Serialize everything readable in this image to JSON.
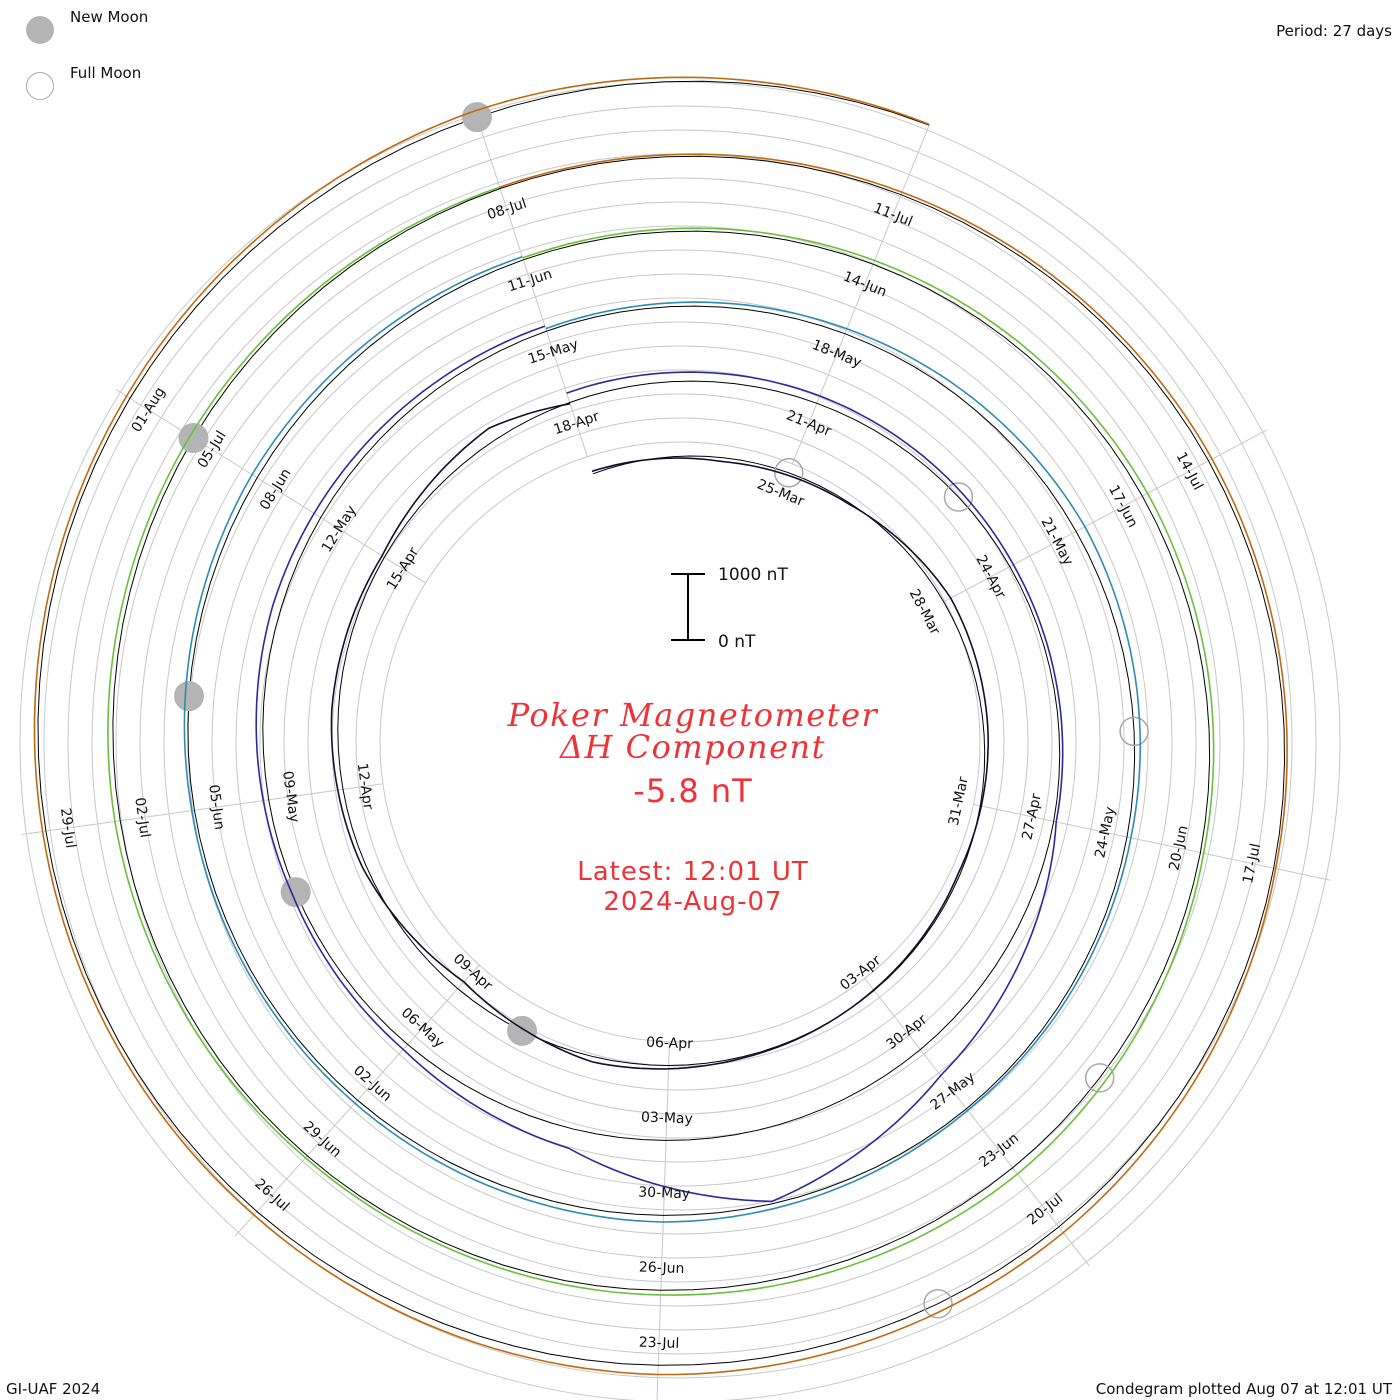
{
  "header": {
    "period_label": "Period: 27 days"
  },
  "legend": {
    "new_moon_label": "New Moon",
    "full_moon_label": "Full Moon"
  },
  "title": {
    "line1": "Poker Magnetometer",
    "line2": "ΔH Component",
    "current_value": "-5.8 nT",
    "latest_line1": "Latest: 12:01 UT",
    "latest_line2": "2024-Aug-07"
  },
  "footer": {
    "left": "GI-UAF 2024",
    "right": "Condegram plotted Aug 07 at 12:01 UT"
  },
  "colors": {
    "title": "#ee3338",
    "grid": "#c0c0c0",
    "baseline": "#000000",
    "moon_fill": "#b4b4b4"
  },
  "chart_data": {
    "type": "line",
    "subtype": "spiral condegram",
    "period_days": 27,
    "start_date": "2024-03-22",
    "end_date": "2024-08-07",
    "scale_bar": {
      "low_label": "0 nT",
      "high_label": "1000 nT",
      "low": 0,
      "high": 1000
    },
    "date_labels": [
      {
        "text": "25-Mar",
        "date": "2024-03-25"
      },
      {
        "text": "28-Mar",
        "date": "2024-03-28"
      },
      {
        "text": "31-Mar",
        "date": "2024-03-31"
      },
      {
        "text": "03-Apr",
        "date": "2024-04-03"
      },
      {
        "text": "06-Apr",
        "date": "2024-04-06"
      },
      {
        "text": "09-Apr",
        "date": "2024-04-09"
      },
      {
        "text": "12-Apr",
        "date": "2024-04-12"
      },
      {
        "text": "15-Apr",
        "date": "2024-04-15"
      },
      {
        "text": "18-Apr",
        "date": "2024-04-18"
      },
      {
        "text": "21-Apr",
        "date": "2024-04-21"
      },
      {
        "text": "24-Apr",
        "date": "2024-04-24"
      },
      {
        "text": "27-Apr",
        "date": "2024-04-27"
      },
      {
        "text": "30-Apr",
        "date": "2024-04-30"
      },
      {
        "text": "03-May",
        "date": "2024-05-03"
      },
      {
        "text": "06-May",
        "date": "2024-05-06"
      },
      {
        "text": "09-May",
        "date": "2024-05-09"
      },
      {
        "text": "12-May",
        "date": "2024-05-12"
      },
      {
        "text": "15-May",
        "date": "2024-05-15"
      },
      {
        "text": "18-May",
        "date": "2024-05-18"
      },
      {
        "text": "21-May",
        "date": "2024-05-21"
      },
      {
        "text": "24-May",
        "date": "2024-05-24"
      },
      {
        "text": "27-May",
        "date": "2024-05-27"
      },
      {
        "text": "30-May",
        "date": "2024-05-30"
      },
      {
        "text": "02-Jun",
        "date": "2024-06-02"
      },
      {
        "text": "05-Jun",
        "date": "2024-06-05"
      },
      {
        "text": "08-Jun",
        "date": "2024-06-08"
      },
      {
        "text": "11-Jun",
        "date": "2024-06-11"
      },
      {
        "text": "14-Jun",
        "date": "2024-06-14"
      },
      {
        "text": "17-Jun",
        "date": "2024-06-17"
      },
      {
        "text": "20-Jun",
        "date": "2024-06-20"
      },
      {
        "text": "23-Jun",
        "date": "2024-06-23"
      },
      {
        "text": "26-Jun",
        "date": "2024-06-26"
      },
      {
        "text": "29-Jun",
        "date": "2024-06-29"
      },
      {
        "text": "02-Jul",
        "date": "2024-07-02"
      },
      {
        "text": "05-Jul",
        "date": "2024-07-05"
      },
      {
        "text": "08-Jul",
        "date": "2024-07-08"
      },
      {
        "text": "11-Jul",
        "date": "2024-07-11"
      },
      {
        "text": "14-Jul",
        "date": "2024-07-14"
      },
      {
        "text": "17-Jul",
        "date": "2024-07-17"
      },
      {
        "text": "20-Jul",
        "date": "2024-07-20"
      },
      {
        "text": "23-Jul",
        "date": "2024-07-23"
      },
      {
        "text": "26-Jul",
        "date": "2024-07-26"
      },
      {
        "text": "29-Jul",
        "date": "2024-07-29"
      },
      {
        "text": "01-Aug",
        "date": "2024-08-01"
      }
    ],
    "new_moons": [
      "2024-04-08",
      "2024-05-08",
      "2024-06-06",
      "2024-07-05",
      "2024-08-04"
    ],
    "full_moons": [
      "2024-03-25",
      "2024-04-23",
      "2024-05-23",
      "2024-06-22",
      "2024-07-21"
    ],
    "series": [
      {
        "color": "#10102e",
        "days": [
          0,
          2,
          4,
          6,
          8,
          10,
          12,
          14,
          16,
          18,
          20,
          22,
          24,
          26,
          27
        ],
        "values": [
          -40,
          60,
          20,
          -120,
          -60,
          30,
          10,
          -20,
          -80,
          140,
          -60,
          -100,
          -40,
          -200,
          20
        ]
      },
      {
        "color": "#2a2a9e",
        "days": [
          27,
          30,
          33,
          36,
          39,
          41,
          43,
          45,
          47,
          50,
          54
        ],
        "values": [
          -150,
          -120,
          -60,
          -40,
          -500,
          -1100,
          -300,
          -100,
          -60,
          -130,
          -80
        ]
      },
      {
        "color": "#2e8bb5",
        "days": [
          54,
          57,
          60,
          63,
          66,
          69,
          72,
          75,
          78,
          81
        ],
        "values": [
          -40,
          -80,
          -150,
          -60,
          -30,
          -100,
          -60,
          -40,
          -90,
          -50
        ]
      },
      {
        "color": "#6bbf3a",
        "days": [
          81,
          84,
          87,
          90,
          93,
          96,
          99,
          102,
          105,
          108
        ],
        "values": [
          -30,
          -60,
          -90,
          -50,
          -120,
          -70,
          -40,
          -80,
          -60,
          -20
        ]
      },
      {
        "color": "#c06a10",
        "days": [
          108,
          111,
          114,
          117,
          120,
          123,
          126,
          129,
          132,
          135,
          138
        ],
        "values": [
          -20,
          -40,
          -60,
          -30,
          -110,
          -140,
          -70,
          -50,
          -60,
          -100,
          -10
        ]
      }
    ]
  }
}
